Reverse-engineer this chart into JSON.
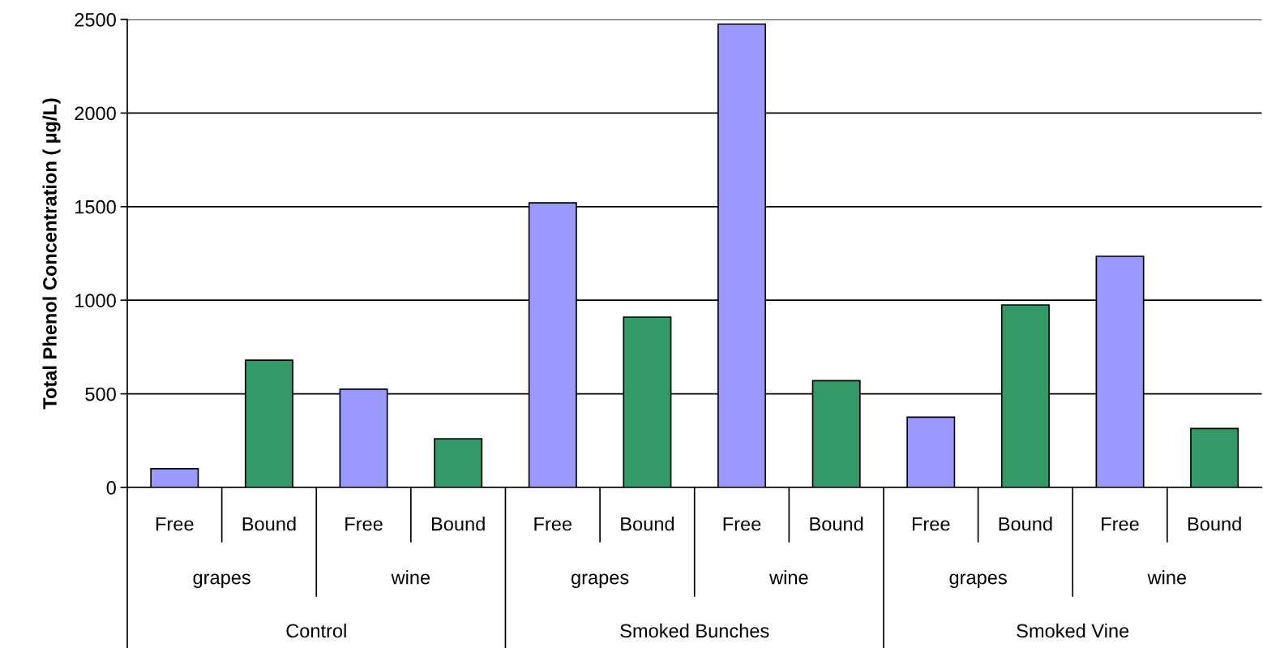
{
  "chart_data": {
    "type": "bar",
    "ylabel": "Total Phenol Concentration ( µg/L)",
    "categories": [
      "Free",
      "Bound",
      "Free",
      "Bound",
      "Free",
      "Bound",
      "Free",
      "Bound",
      "Free",
      "Bound",
      "Free",
      "Bound"
    ],
    "values": [
      100,
      680,
      525,
      260,
      1520,
      910,
      2475,
      570,
      375,
      975,
      1235,
      315
    ],
    "colors": [
      "#9999ff",
      "#339966",
      "#9999ff",
      "#339966",
      "#9999ff",
      "#339966",
      "#9999ff",
      "#339966",
      "#9999ff",
      "#339966",
      "#9999ff",
      "#339966"
    ],
    "ylim": [
      0,
      2500
    ],
    "yticks": [
      0,
      500,
      1000,
      1500,
      2000,
      2500
    ],
    "grid": "y",
    "annotations": [
      "grapes",
      "wine",
      "grapes",
      "wine",
      "grapes",
      "wine",
      "Control",
      "Smoked Bunches",
      "Smoked Vine"
    ]
  }
}
